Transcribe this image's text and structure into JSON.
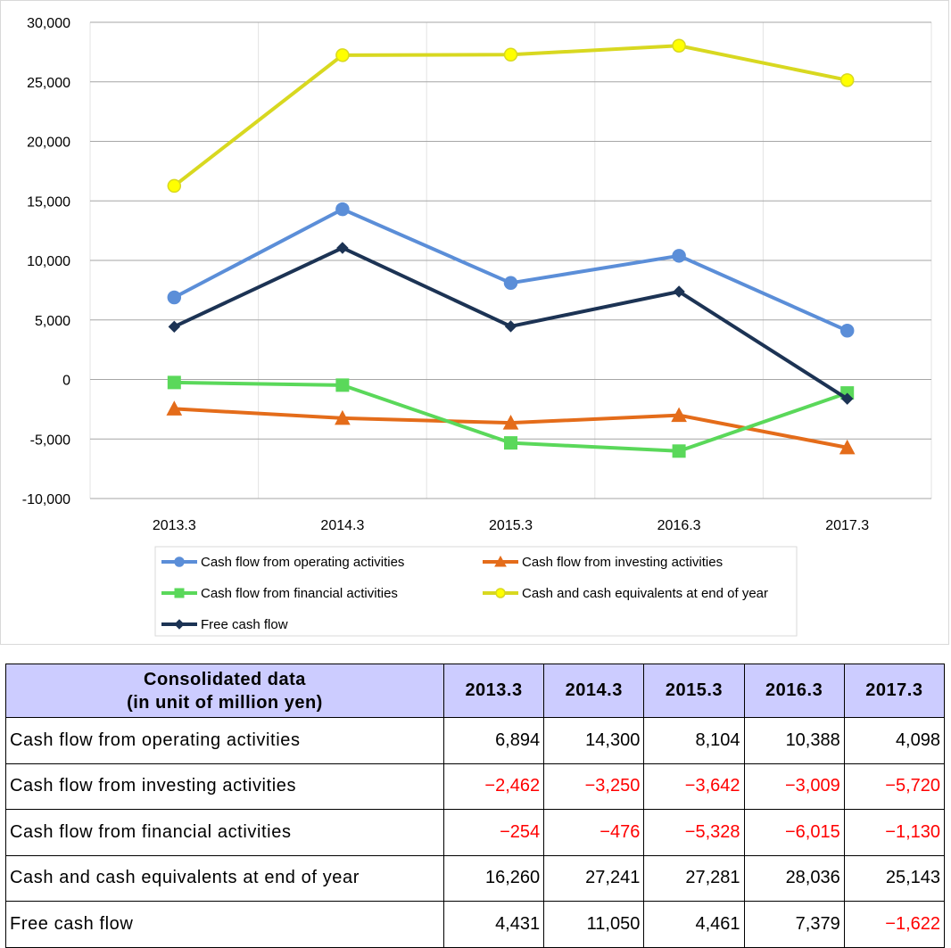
{
  "chart_data": {
    "type": "line",
    "categories": [
      "2013.3",
      "2014.3",
      "2015.3",
      "2016.3",
      "2017.3"
    ],
    "ylim": [
      -10000,
      30000
    ],
    "yticks": [
      30000,
      25000,
      20000,
      15000,
      10000,
      5000,
      0,
      -5000,
      -10000
    ],
    "ytick_labels": [
      "30,000",
      "25,000",
      "20,000",
      "15,000",
      "10,000",
      "5,000",
      "0",
      "-5,000",
      "-10,000"
    ],
    "negative_tick_color": "#ff0000",
    "grid": true,
    "legend_position": "bottom",
    "series": [
      {
        "name": "Cash flow from operating activities",
        "color": "#5b8ed8",
        "marker": "circle",
        "values": [
          6894,
          14300,
          8104,
          10388,
          4098
        ]
      },
      {
        "name": "Cash flow from investing activities",
        "color": "#e46c1a",
        "marker": "triangle",
        "values": [
          -2462,
          -3250,
          -3642,
          -3009,
          -5720
        ]
      },
      {
        "name": "Cash flow from financial activities",
        "color": "#5ad85a",
        "marker": "square",
        "values": [
          -254,
          -476,
          -5328,
          -6015,
          -1130
        ]
      },
      {
        "name": "Cash and cash equivalents at end of year",
        "color": "#d8d820",
        "marker": "circle",
        "marker_fill": "#ffff00",
        "values": [
          16260,
          27241,
          27281,
          28036,
          25143
        ]
      },
      {
        "name": "Free cash flow",
        "color": "#1c3354",
        "marker": "diamond",
        "values": [
          4431,
          11050,
          4461,
          7379,
          -1622
        ]
      }
    ]
  },
  "table": {
    "header_line1": "Consolidated data",
    "header_line2": "(in unit of million yen)",
    "columns": [
      "2013.3",
      "2014.3",
      "2015.3",
      "2016.3",
      "2017.3"
    ],
    "rows": [
      {
        "label": "Cash flow from operating activities",
        "cells": [
          "6,894",
          "14,300",
          "8,104",
          "10,388",
          "4,098"
        ]
      },
      {
        "label": "Cash flow from investing activities",
        "cells": [
          "−2,462",
          "−3,250",
          "−3,642",
          "−3,009",
          "−5,720"
        ]
      },
      {
        "label": "Cash flow from financial activities",
        "cells": [
          "−254",
          "−476",
          "−5,328",
          "−6,015",
          "−1,130"
        ]
      },
      {
        "label": "Cash and cash equivalents at end of year",
        "cells": [
          "16,260",
          "27,241",
          "27,281",
          "28,036",
          "25,143"
        ]
      },
      {
        "label": "Free cash flow",
        "cells": [
          "4,431",
          "11,050",
          "4,461",
          "7,379",
          "−1,622"
        ]
      }
    ]
  }
}
